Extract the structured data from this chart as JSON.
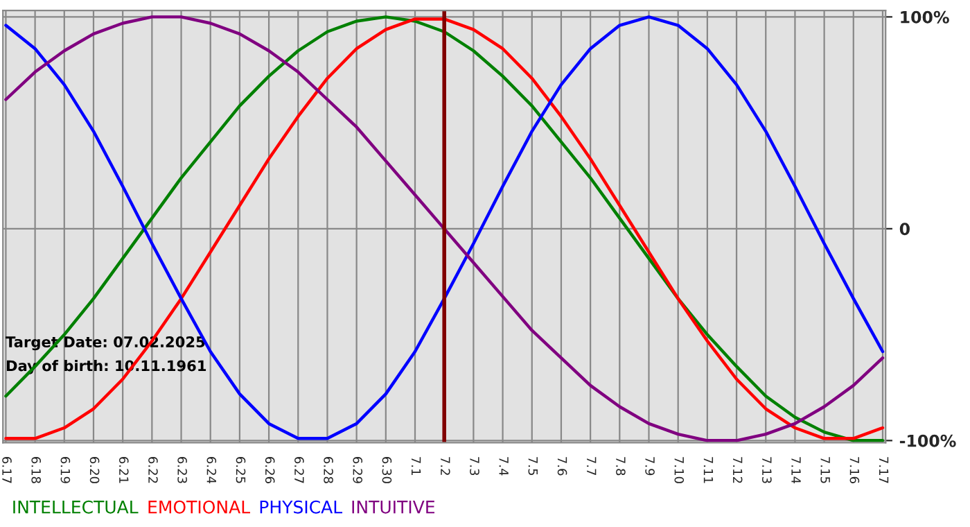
{
  "chart_data": {
    "type": "line",
    "categories": [
      "6.17",
      "6.18",
      "6.19",
      "6.20",
      "6.21",
      "6.22",
      "6.23",
      "6.24",
      "6.25",
      "6.26",
      "6.27",
      "6.28",
      "6.29",
      "6.30",
      "7.1",
      "7.2",
      "7.3",
      "7.4",
      "7.5",
      "7.6",
      "7.7",
      "7.8",
      "7.9",
      "7.10",
      "7.11",
      "7.12",
      "7.13",
      "7.14",
      "7.15",
      "7.16",
      "7.17"
    ],
    "series": [
      {
        "name": "INTELLECTUAL",
        "color": "#008000",
        "values": [
          -79,
          -65,
          -50,
          -33,
          -14,
          5,
          24,
          41,
          58,
          72,
          84,
          93,
          98,
          100,
          98,
          93,
          84,
          72,
          58,
          41,
          24,
          5,
          -14,
          -33,
          -50,
          -65,
          -79,
          -89,
          -96,
          -100,
          -100
        ]
      },
      {
        "name": "EMOTIONAL",
        "color": "#ff0000",
        "values": [
          -99,
          -99,
          -94,
          -85,
          -71,
          -53,
          -33,
          -11,
          11,
          33,
          53,
          71,
          85,
          94,
          99,
          99,
          94,
          85,
          71,
          53,
          33,
          11,
          -11,
          -33,
          -53,
          -71,
          -85,
          -94,
          -99,
          -99,
          -94
        ]
      },
      {
        "name": "PHYSICAL",
        "color": "#0000ff",
        "values": [
          96,
          85,
          68,
          46,
          20,
          -7,
          -33,
          -58,
          -78,
          -92,
          -99,
          -99,
          -92,
          -78,
          -58,
          -33,
          -7,
          20,
          46,
          68,
          85,
          96,
          100,
          96,
          85,
          68,
          46,
          20,
          -7,
          -33,
          -58
        ]
      },
      {
        "name": "INTUITIVE",
        "color": "#800080",
        "values": [
          61,
          74,
          84,
          92,
          97,
          100,
          100,
          97,
          92,
          84,
          74,
          61,
          48,
          32,
          16,
          0,
          -16,
          -32,
          -48,
          -61,
          -74,
          -84,
          -92,
          -97,
          -100,
          -100,
          -97,
          -92,
          -84,
          -74,
          -61
        ]
      }
    ],
    "ylim": [
      -101,
      103
    ],
    "yticks": [
      {
        "value": 100,
        "label": "100%"
      },
      0,
      {
        "value": -100,
        "label": "-100%"
      }
    ],
    "ref_lines": [
      {
        "axis": "x",
        "value": "7.2",
        "color": "#800000"
      }
    ],
    "annotations": [
      "Target Date: 07.02.2025",
      "Day of birth: 10.11.1961"
    ],
    "grid": true,
    "legend": "bottom"
  }
}
